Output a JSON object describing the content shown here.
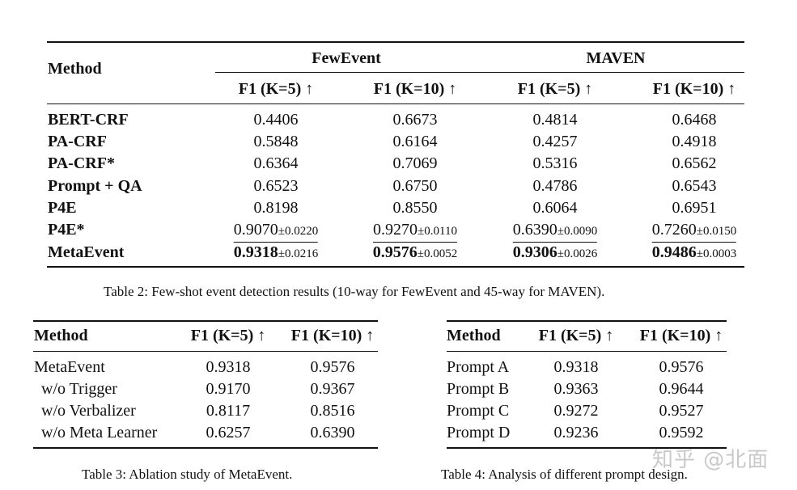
{
  "table2": {
    "method_header": "Method",
    "groups": [
      "FewEvent",
      "MAVEN"
    ],
    "cols": [
      "F1 (K=5) ↑",
      "F1 (K=10) ↑",
      "F1 (K=5) ↑",
      "F1 (K=10) ↑"
    ],
    "rows": [
      {
        "method": "BERT-CRF",
        "v": [
          "0.4406",
          "0.6673",
          "0.4814",
          "0.6468"
        ]
      },
      {
        "method": "PA-CRF",
        "v": [
          "0.5848",
          "0.6164",
          "0.4257",
          "0.4918"
        ]
      },
      {
        "method": "PA-CRF*",
        "v": [
          "0.6364",
          "0.7069",
          "0.5316",
          "0.6562"
        ]
      },
      {
        "method": "Prompt + QA",
        "v": [
          "0.6523",
          "0.6750",
          "0.4786",
          "0.6543"
        ]
      },
      {
        "method": "P4E",
        "v": [
          "0.8198",
          "0.8550",
          "0.6064",
          "0.6951"
        ]
      },
      {
        "method": "P4E*",
        "v": [
          "0.9070",
          "0.9270",
          "0.6390",
          "0.7260"
        ],
        "pm": [
          "±0.0220",
          "±0.0110",
          "±0.0090",
          "±0.0150"
        ]
      },
      {
        "method": "MetaEvent",
        "v": [
          "0.9318",
          "0.9576",
          "0.9306",
          "0.9486"
        ],
        "pm": [
          "±0.0216",
          "±0.0052",
          "±0.0026",
          "±0.0003"
        ]
      }
    ],
    "caption": "Table 2: Few-shot event detection results (10-way for FewEvent and 45-way for MAVEN)."
  },
  "table3": {
    "method_header": "Method",
    "cols": [
      "F1 (K=5) ↑",
      "F1 (K=10) ↑"
    ],
    "rows": [
      {
        "method": "MetaEvent",
        "v": [
          "0.9318",
          "0.9576"
        ]
      },
      {
        "method": "w/o Trigger",
        "v": [
          "0.9170",
          "0.9367"
        ]
      },
      {
        "method": "w/o Verbalizer",
        "v": [
          "0.8117",
          "0.8516"
        ]
      },
      {
        "method": "w/o Meta Learner",
        "v": [
          "0.6257",
          "0.6390"
        ]
      }
    ],
    "caption": "Table 3: Ablation study of MetaEvent."
  },
  "table4": {
    "method_header": "Method",
    "cols": [
      "F1 (K=5) ↑",
      "F1 (K=10) ↑"
    ],
    "rows": [
      {
        "method": "Prompt A",
        "v": [
          "0.9318",
          "0.9576"
        ]
      },
      {
        "method": "Prompt B",
        "v": [
          "0.9363",
          "0.9644"
        ]
      },
      {
        "method": "Prompt C",
        "v": [
          "0.9272",
          "0.9527"
        ]
      },
      {
        "method": "Prompt D",
        "v": [
          "0.9236",
          "0.9592"
        ]
      }
    ],
    "caption": "Table 4: Analysis of different prompt design."
  },
  "watermark": "知乎 @北面"
}
